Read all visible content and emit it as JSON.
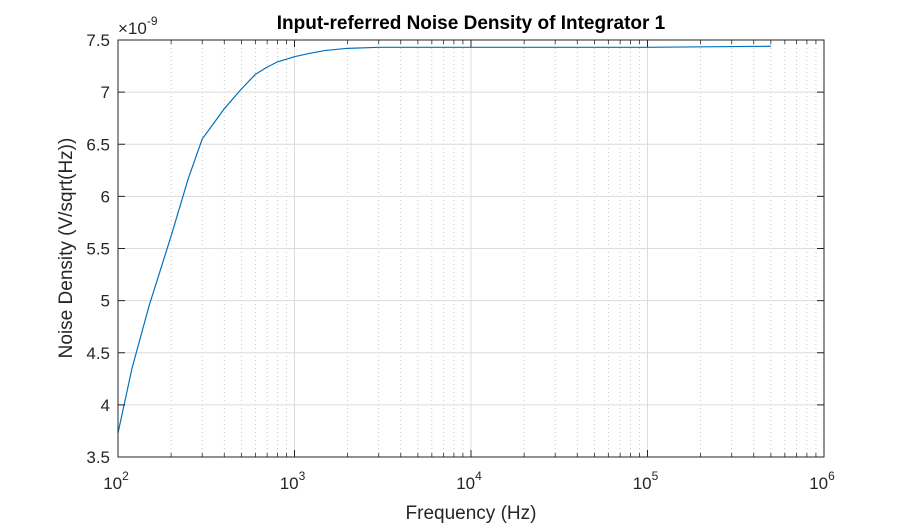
{
  "chart_data": {
    "type": "line",
    "title": "Input-referred Noise Density of Integrator 1",
    "xlabel": "Frequency (Hz)",
    "ylabel": "Noise Density (V/sqrt(Hz))",
    "xscale": "log",
    "xlim": [
      100,
      1000000
    ],
    "ylim": [
      3.5,
      7.5
    ],
    "y_exponent_label": "×10",
    "y_exponent_power": "-9",
    "grid": "on (major and minor)",
    "x_ticks": [
      {
        "value": 100,
        "base": "10",
        "power": "2"
      },
      {
        "value": 1000,
        "base": "10",
        "power": "3"
      },
      {
        "value": 10000,
        "base": "10",
        "power": "4"
      },
      {
        "value": 100000,
        "base": "10",
        "power": "5"
      },
      {
        "value": 1000000,
        "base": "10",
        "power": "6"
      }
    ],
    "y_ticks": [
      {
        "value": 3.5,
        "label": "3.5"
      },
      {
        "value": 4,
        "label": "4"
      },
      {
        "value": 4.5,
        "label": "4.5"
      },
      {
        "value": 5,
        "label": "5"
      },
      {
        "value": 5.5,
        "label": "5.5"
      },
      {
        "value": 6,
        "label": "6"
      },
      {
        "value": 6.5,
        "label": "6.5"
      },
      {
        "value": 7,
        "label": "7"
      },
      {
        "value": 7.5,
        "label": "7.5"
      }
    ],
    "series": [
      {
        "color": "#0072BD",
        "x": [
          100,
          120,
          150,
          200,
          250,
          300,
          400,
          500,
          600,
          700,
          800,
          1000,
          1200,
          1500,
          2000,
          3000,
          5000,
          10000,
          50000,
          100000,
          500000
        ],
        "y": [
          3.73,
          4.35,
          4.95,
          5.62,
          6.17,
          6.55,
          6.84,
          7.03,
          7.17,
          7.24,
          7.29,
          7.34,
          7.37,
          7.4,
          7.42,
          7.43,
          7.43,
          7.43,
          7.43,
          7.43,
          7.44
        ]
      }
    ]
  }
}
